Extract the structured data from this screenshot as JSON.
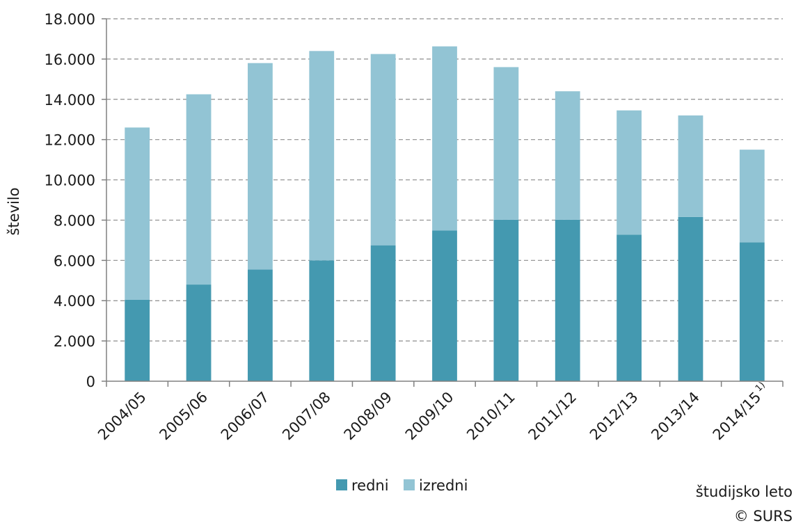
{
  "chart_data": {
    "type": "bar",
    "stacked": true,
    "categories": [
      "2004/05",
      "2005/06",
      "2006/07",
      "2007/08",
      "2008/09",
      "2009/10",
      "2010/11",
      "2011/12",
      "2012/13",
      "2013/14",
      "2014/15"
    ],
    "category_footnotes": [
      "",
      "",
      "",
      "",
      "",
      "",
      "",
      "",
      "",
      "",
      "1)"
    ],
    "series": [
      {
        "name": "redni",
        "color": "#4499b0",
        "values": [
          4050,
          4800,
          5550,
          6000,
          6750,
          7480,
          8020,
          8020,
          7280,
          8160,
          6900
        ]
      },
      {
        "name": "izredni",
        "color": "#92c4d4",
        "values": [
          8550,
          9450,
          10250,
          10400,
          9500,
          9150,
          7580,
          6380,
          6170,
          5040,
          4600
        ]
      }
    ],
    "ylabel": "število",
    "xlabel": "študijsko leto",
    "ylim": [
      0,
      18000
    ],
    "ytick_step": 2000,
    "ytick_labels": [
      "0",
      "2.000",
      "4.000",
      "6.000",
      "8.000",
      "10.000",
      "12.000",
      "14.000",
      "16.000",
      "18.000"
    ],
    "grid": true,
    "grid_style": "dashed",
    "legend_position": "bottom-center",
    "source": "© SURS"
  }
}
